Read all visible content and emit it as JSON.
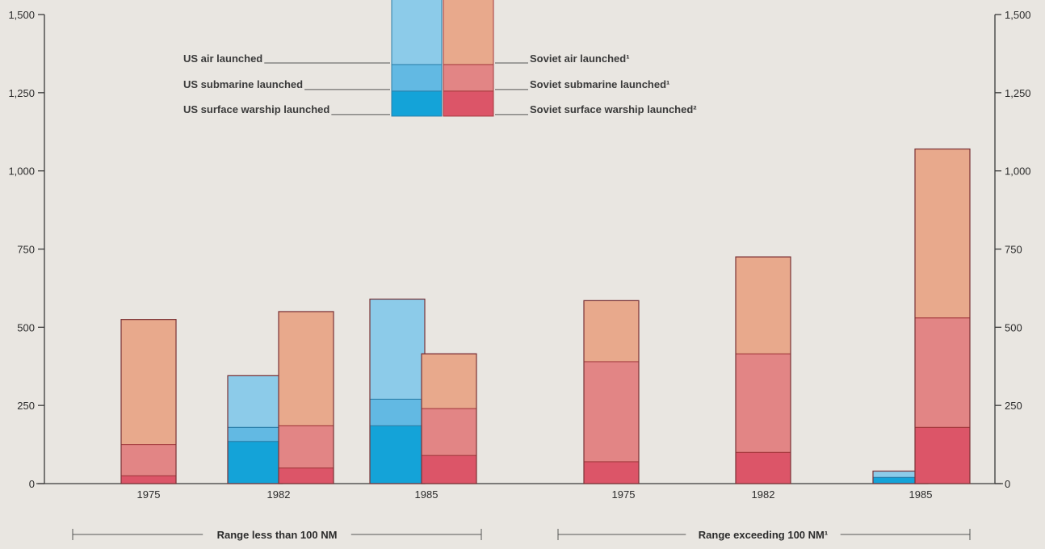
{
  "chart_data": {
    "type": "bar",
    "stacked": true,
    "ylim": [
      0,
      1500
    ],
    "yticks": [
      "0",
      "250",
      "500",
      "750",
      "1,000",
      "1,250",
      "1,500"
    ],
    "ytick_values": [
      0,
      250,
      500,
      750,
      1000,
      1250,
      1500
    ],
    "grid": false,
    "groups": [
      {
        "label": "Range less than 100 NM",
        "categories": [
          "1975",
          "1982",
          "1985"
        ]
      },
      {
        "label": "Range exceeding 100 NM¹",
        "categories": [
          "1975",
          "1982",
          "1985"
        ]
      }
    ],
    "categories": [
      "1975",
      "1982",
      "1985",
      "1975",
      "1982",
      "1985"
    ],
    "series": [
      {
        "name": "US surface warship launched",
        "country": "US",
        "values": [
          0,
          135,
          185,
          0,
          0,
          20
        ]
      },
      {
        "name": "US submarine launched",
        "country": "US",
        "values": [
          0,
          45,
          85,
          0,
          5,
          0
        ]
      },
      {
        "name": "US air launched",
        "country": "US",
        "values": [
          0,
          165,
          320,
          0,
          0,
          20
        ]
      },
      {
        "name": "Soviet surface warship launched²",
        "country": "Soviet",
        "values": [
          25,
          50,
          90,
          70,
          100,
          180
        ]
      },
      {
        "name": "Soviet submarine launched¹",
        "country": "Soviet",
        "values": [
          100,
          135,
          150,
          320,
          315,
          350
        ]
      },
      {
        "name": "Soviet air launched¹",
        "country": "Soviet",
        "values": [
          400,
          365,
          175,
          195,
          310,
          540
        ]
      }
    ],
    "colors": {
      "US surface warship launched": "#14a3d8",
      "US submarine launched": "#62b9e3",
      "US air launched": "#8ccbe9",
      "Soviet surface warship launched²": "#dc5568",
      "Soviet submarine launched¹": "#e28585",
      "Soviet air launched¹": "#e8a98c"
    },
    "legend": {
      "placement": "top-center",
      "us": [
        "US air launched",
        "US submarine launched",
        "US surface warship launched"
      ],
      "soviet": [
        "Soviet air launched¹",
        "Soviet submarine launched¹",
        "Soviet surface warship launched²"
      ],
      "sample_values": {
        "surface": 80,
        "submarine": 85,
        "air": 305
      }
    }
  }
}
